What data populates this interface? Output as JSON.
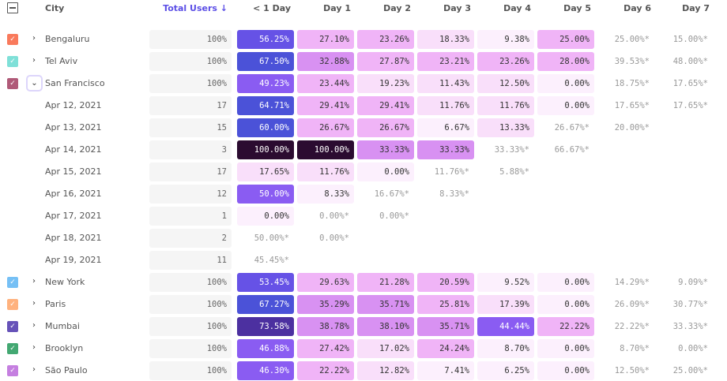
{
  "header": {
    "city": "City",
    "total_users": "Total Users ↓",
    "columns": [
      "< 1 Day",
      "Day 1",
      "Day 2",
      "Day 3",
      "Day 4",
      "Day 5",
      "Day 6",
      "Day 7"
    ],
    "accent": "#5b4ee6"
  },
  "rows": [
    {
      "name": "Bengaluru",
      "type": "city",
      "checkbox_color": "#f97a5c",
      "expanded": false,
      "total": "100%",
      "cells": [
        "56.25%",
        "27.10%",
        "23.26%",
        "18.33%",
        "9.38%",
        "25.00%",
        "25.00%*",
        "15.00%*"
      ]
    },
    {
      "name": "Tel Aviv",
      "type": "city",
      "checkbox_color": "#7fe0d8",
      "expanded": false,
      "total": "100%",
      "cells": [
        "67.50%",
        "32.88%",
        "27.87%",
        "23.21%",
        "23.26%",
        "28.00%",
        "39.53%*",
        "48.00%*"
      ]
    },
    {
      "name": "San Francisco",
      "type": "city",
      "checkbox_color": "#b05a78",
      "expanded": true,
      "total": "100%",
      "cells": [
        "49.23%",
        "23.44%",
        "19.23%",
        "11.43%",
        "12.50%",
        "0.00%",
        "18.75%*",
        "17.65%*"
      ]
    },
    {
      "name": "Apr 12, 2021",
      "type": "date",
      "total": "17",
      "cells": [
        "64.71%",
        "29.41%",
        "29.41%",
        "11.76%",
        "11.76%",
        "0.00%",
        "17.65%*",
        "17.65%*"
      ]
    },
    {
      "name": "Apr 13, 2021",
      "type": "date",
      "total": "15",
      "cells": [
        "60.00%",
        "26.67%",
        "26.67%",
        "6.67%",
        "13.33%",
        "26.67%*",
        "20.00%*"
      ]
    },
    {
      "name": "Apr 14, 2021",
      "type": "date",
      "total": "3",
      "cells": [
        "100.00%",
        "100.00%",
        "33.33%",
        "33.33%",
        "33.33%*",
        "66.67%*"
      ]
    },
    {
      "name": "Apr 15, 2021",
      "type": "date",
      "total": "17",
      "cells": [
        "17.65%",
        "11.76%",
        "0.00%",
        "11.76%*",
        "5.88%*"
      ]
    },
    {
      "name": "Apr 16, 2021",
      "type": "date",
      "total": "12",
      "cells": [
        "50.00%",
        "8.33%",
        "16.67%*",
        "8.33%*"
      ]
    },
    {
      "name": "Apr 17, 2021",
      "type": "date",
      "total": "1",
      "cells": [
        "0.00%",
        "0.00%*",
        "0.00%*"
      ]
    },
    {
      "name": "Apr 18, 2021",
      "type": "date",
      "total": "2",
      "cells": [
        "50.00%*",
        "0.00%*"
      ]
    },
    {
      "name": "Apr 19, 2021",
      "type": "date",
      "total": "11",
      "cells": [
        "45.45%*"
      ]
    },
    {
      "name": "New York",
      "type": "city",
      "checkbox_color": "#76c0f5",
      "expanded": false,
      "total": "100%",
      "cells": [
        "53.45%",
        "29.63%",
        "21.28%",
        "20.59%",
        "9.52%",
        "0.00%",
        "14.29%*",
        "9.09%*"
      ]
    },
    {
      "name": "Paris",
      "type": "city",
      "checkbox_color": "#ffb27e",
      "expanded": false,
      "total": "100%",
      "cells": [
        "67.27%",
        "35.29%",
        "35.71%",
        "25.81%",
        "17.39%",
        "0.00%",
        "26.09%*",
        "30.77%*"
      ]
    },
    {
      "name": "Mumbai",
      "type": "city",
      "checkbox_color": "#6652b8",
      "expanded": false,
      "total": "100%",
      "cells": [
        "73.58%",
        "38.78%",
        "38.10%",
        "35.71%",
        "44.44%",
        "22.22%",
        "22.22%*",
        "33.33%*"
      ]
    },
    {
      "name": "Brooklyn",
      "type": "city",
      "checkbox_color": "#43a872",
      "expanded": false,
      "total": "100%",
      "cells": [
        "46.88%",
        "27.42%",
        "17.02%",
        "24.24%",
        "8.70%",
        "0.00%",
        "8.70%*",
        "0.00%*"
      ]
    },
    {
      "name": "São Paulo",
      "type": "city",
      "checkbox_color": "#c57fe0",
      "expanded": false,
      "total": "100%",
      "cells": [
        "46.30%",
        "22.22%",
        "12.82%",
        "7.41%",
        "6.25%",
        "0.00%",
        "12.50%*",
        "25.00%*"
      ]
    }
  ]
}
